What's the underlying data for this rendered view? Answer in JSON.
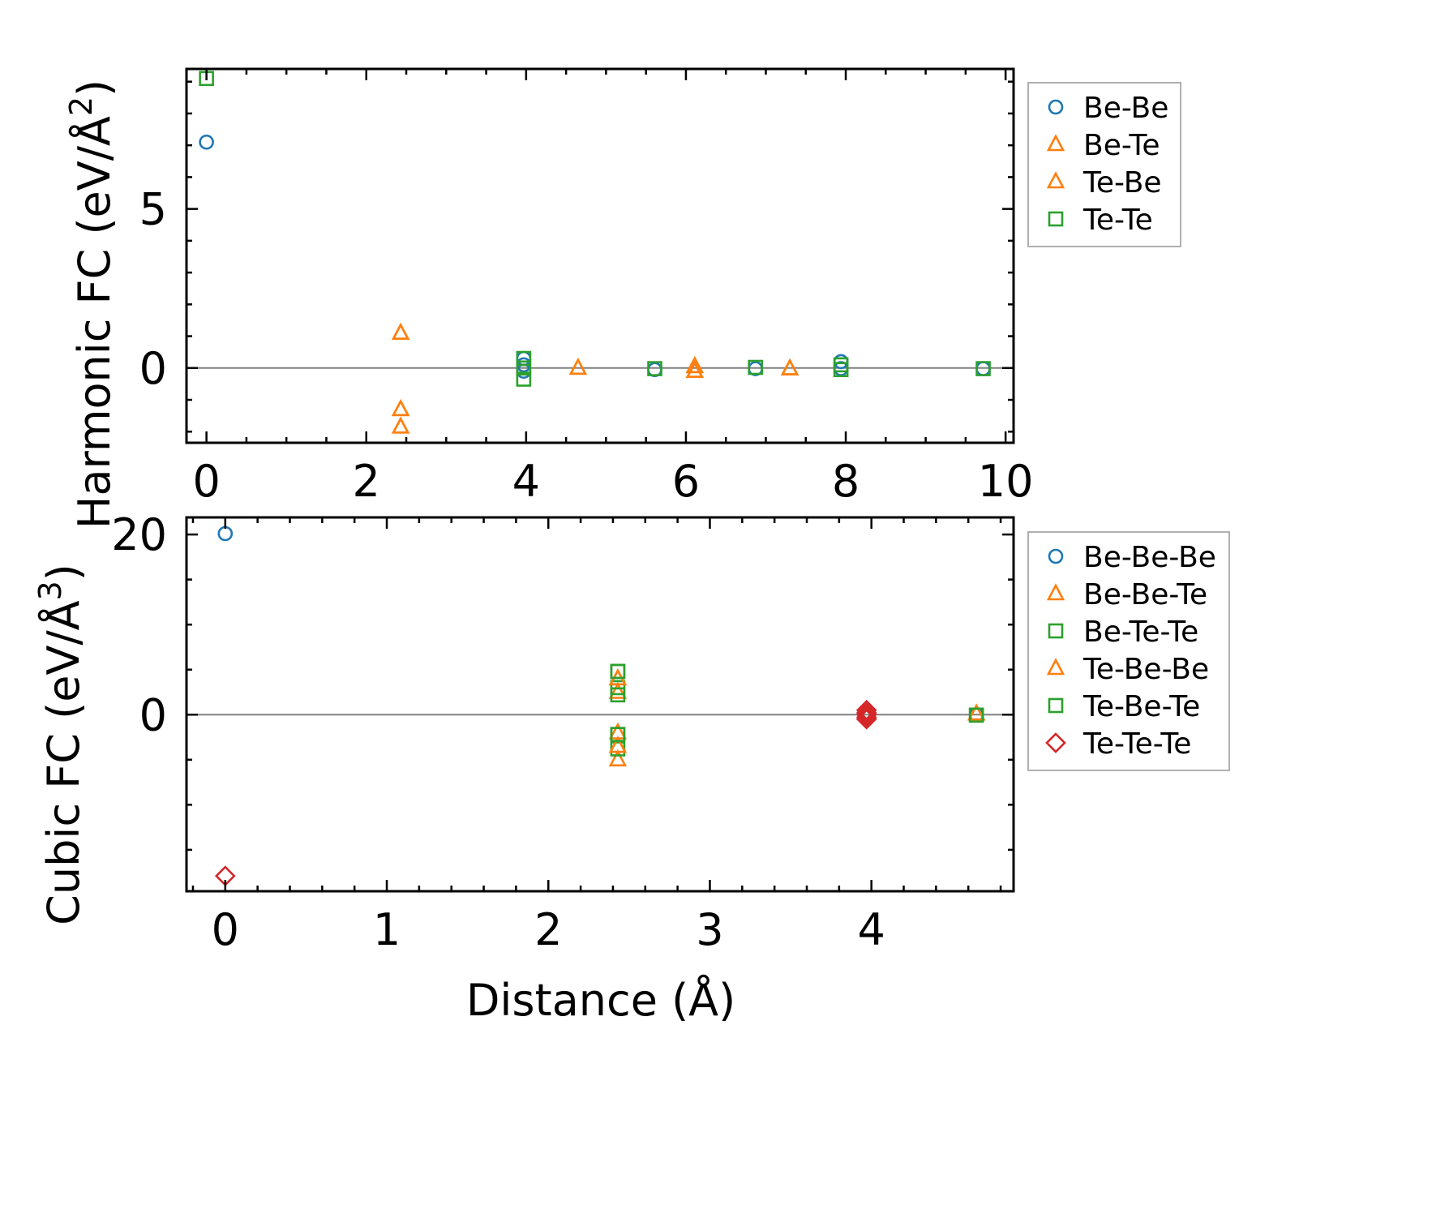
{
  "colors": {
    "blue": "#1f77b4",
    "orange": "#ff7f0e",
    "green": "#2ca02c",
    "red": "#d62728",
    "zero_line": "#808080",
    "legend_border": "#b0b0b0"
  },
  "chart_data": [
    {
      "type": "scatter",
      "ylabel_text": "Harmonic FC (eV/Å",
      "ylabel_sup": "2",
      "ylabel_close": ")",
      "xlim": [
        -0.25,
        10.1
      ],
      "ylim": [
        -2.35,
        9.4
      ],
      "xticks": [
        0,
        2,
        4,
        6,
        8,
        10
      ],
      "xtick_labels": [
        "0",
        "2",
        "4",
        "6",
        "8",
        "10"
      ],
      "xminor_step": 0.5,
      "yticks": [
        0,
        5
      ],
      "ytick_labels": [
        "0",
        "5"
      ],
      "yminor_step": 1,
      "zero_line": true,
      "series": [
        {
          "name": "Be-Be",
          "marker": "circle",
          "color": "blue",
          "points": [
            [
              0,
              7.1
            ],
            [
              3.97,
              0.3
            ],
            [
              3.97,
              0.1
            ],
            [
              3.97,
              -0.1
            ],
            [
              5.61,
              -0.05
            ],
            [
              6.87,
              -0.02
            ],
            [
              7.94,
              0.2
            ],
            [
              7.94,
              -0.02
            ],
            [
              9.72,
              -0.02
            ]
          ]
        },
        {
          "name": "Be-Te",
          "marker": "triangle",
          "color": "orange",
          "points": [
            [
              2.43,
              1.1
            ],
            [
              2.43,
              -1.3
            ],
            [
              2.43,
              -1.85
            ],
            [
              4.65,
              0.0
            ],
            [
              6.11,
              0.05
            ],
            [
              6.11,
              -0.1
            ],
            [
              7.3,
              -0.02
            ]
          ]
        },
        {
          "name": "Te-Be",
          "marker": "triangle",
          "color": "orange",
          "points": [
            [
              2.43,
              1.1
            ],
            [
              2.43,
              -1.3
            ],
            [
              2.43,
              -1.85
            ],
            [
              4.65,
              0.0
            ],
            [
              6.11,
              0.05
            ],
            [
              6.11,
              -0.1
            ],
            [
              7.3,
              -0.02
            ]
          ]
        },
        {
          "name": "Te-Te",
          "marker": "square",
          "color": "green",
          "points": [
            [
              0,
              9.1
            ],
            [
              3.97,
              0.3
            ],
            [
              3.97,
              0.0
            ],
            [
              3.97,
              -0.35
            ],
            [
              5.61,
              -0.02
            ],
            [
              6.87,
              0.02
            ],
            [
              7.94,
              -0.05
            ],
            [
              7.94,
              0.1
            ],
            [
              9.72,
              -0.02
            ]
          ]
        }
      ]
    },
    {
      "type": "scatter",
      "xlabel": "Distance (Å)",
      "ylabel_text": "Cubic FC (eV/Å",
      "ylabel_sup": "3",
      "ylabel_close": ")",
      "xlim": [
        -0.24,
        4.88
      ],
      "ylim": [
        -19.6,
        21.9
      ],
      "xticks": [
        0,
        1,
        2,
        3,
        4
      ],
      "xtick_labels": [
        "0",
        "1",
        "2",
        "3",
        "4"
      ],
      "xminor_step": 0.2,
      "yticks": [
        0,
        20
      ],
      "ytick_labels": [
        "0",
        "20"
      ],
      "yminor_step": 5,
      "zero_line": true,
      "series": [
        {
          "name": "Be-Be-Be",
          "marker": "circle",
          "color": "blue",
          "points": [
            [
              0,
              20.1
            ],
            [
              3.97,
              0.2
            ],
            [
              4.65,
              0.0
            ]
          ]
        },
        {
          "name": "Be-Be-Te",
          "marker": "triangle",
          "color": "orange",
          "points": [
            [
              2.43,
              4.0
            ],
            [
              2.43,
              2.5
            ],
            [
              2.43,
              -2.0
            ],
            [
              2.43,
              -3.5
            ],
            [
              2.43,
              -5.0
            ],
            [
              4.65,
              0.1
            ]
          ]
        },
        {
          "name": "Be-Te-Te",
          "marker": "square",
          "color": "green",
          "points": [
            [
              2.43,
              4.8
            ],
            [
              2.43,
              3.0
            ],
            [
              2.43,
              2.2
            ],
            [
              2.43,
              -2.2
            ],
            [
              2.43,
              -3.8
            ],
            [
              4.65,
              -0.05
            ]
          ]
        },
        {
          "name": "Te-Be-Be",
          "marker": "triangle",
          "color": "orange",
          "points": [
            [
              2.43,
              4.0
            ],
            [
              2.43,
              -3.5
            ],
            [
              4.65,
              0.1
            ]
          ]
        },
        {
          "name": "Te-Be-Te",
          "marker": "square",
          "color": "green",
          "points": [
            [
              2.43,
              4.8
            ],
            [
              2.43,
              -2.2
            ],
            [
              4.65,
              -0.05
            ]
          ]
        },
        {
          "name": "Te-Te-Te",
          "marker": "diamond",
          "color": "red",
          "points": [
            [
              0,
              -17.9
            ],
            [
              3.97,
              0.5
            ],
            [
              3.97,
              0.2
            ],
            [
              3.97,
              0.0
            ],
            [
              3.97,
              -0.3
            ],
            [
              3.97,
              -0.5
            ]
          ]
        }
      ]
    }
  ]
}
